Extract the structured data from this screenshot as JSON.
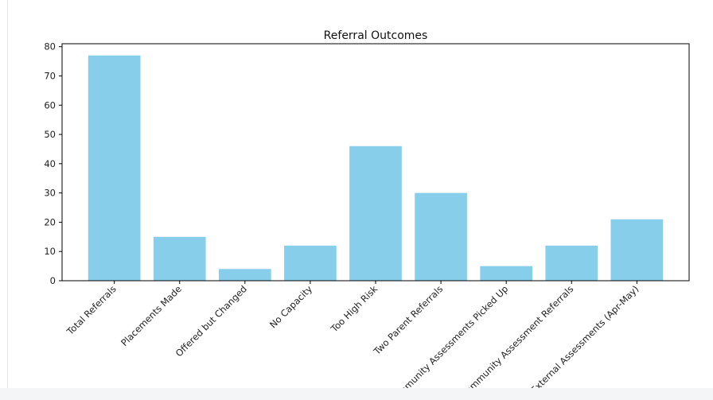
{
  "chart_data": {
    "type": "bar",
    "title": "Referral Outcomes",
    "xlabel": "",
    "ylabel": "",
    "categories": [
      "Total Referrals",
      "Placements Made",
      "Offered but Changed",
      "No Capacity",
      "Too High Risk",
      "Two Parent Referrals",
      "Community Assessments Picked Up",
      "Community Assessment Referrals",
      "External Assessments (Apr-May)"
    ],
    "values": [
      77,
      15,
      4,
      12,
      46,
      30,
      5,
      12,
      21
    ],
    "ylim": [
      0,
      81
    ],
    "yticks": [
      0,
      10,
      20,
      30,
      40,
      50,
      60,
      70,
      80
    ],
    "bar_color": "#87ceeb",
    "grid": false,
    "legend": "none"
  }
}
